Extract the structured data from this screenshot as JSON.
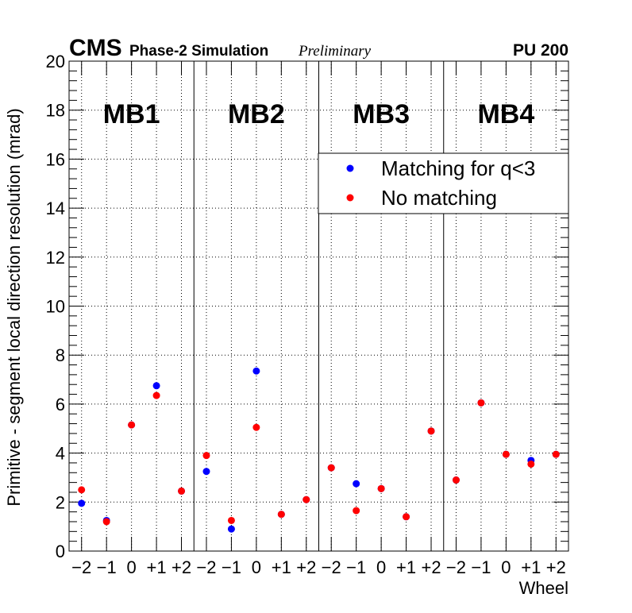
{
  "header": {
    "experiment": "CMS",
    "subtitle": "Phase-2 Simulation",
    "status": "Preliminary",
    "pileup": "PU 200"
  },
  "chart_data": {
    "type": "scatter",
    "xlabel": "Wheel",
    "ylabel": "Primitive - segment local direction resolution (mrad)",
    "ylim": [
      0,
      20
    ],
    "y_ticks": [
      "0",
      "2",
      "4",
      "6",
      "8",
      "10",
      "12",
      "14",
      "16",
      "18",
      "20"
    ],
    "x_tick_labels": [
      "−2",
      "−1",
      "0",
      "+1",
      "+2"
    ],
    "stations": [
      "MB1",
      "MB2",
      "MB3",
      "MB4"
    ],
    "grid": true,
    "legend_position": "top-right",
    "series": [
      {
        "name": "Matching for q<3",
        "color": "#0000ff",
        "values": [
          [
            1.95,
            1.25,
            5.15,
            6.75,
            2.45
          ],
          [
            3.25,
            0.9,
            7.35,
            1.5,
            2.1
          ],
          [
            3.4,
            2.75,
            2.55,
            1.4,
            4.9
          ],
          [
            2.9,
            6.05,
            3.95,
            3.7,
            3.95
          ]
        ]
      },
      {
        "name": "No matching",
        "color": "#ff0000",
        "values": [
          [
            2.5,
            1.2,
            5.15,
            6.35,
            2.45
          ],
          [
            3.9,
            1.25,
            5.05,
            1.5,
            2.1
          ],
          [
            3.4,
            1.65,
            2.55,
            1.4,
            4.9
          ],
          [
            2.9,
            6.05,
            3.95,
            3.55,
            3.95
          ]
        ]
      }
    ]
  }
}
